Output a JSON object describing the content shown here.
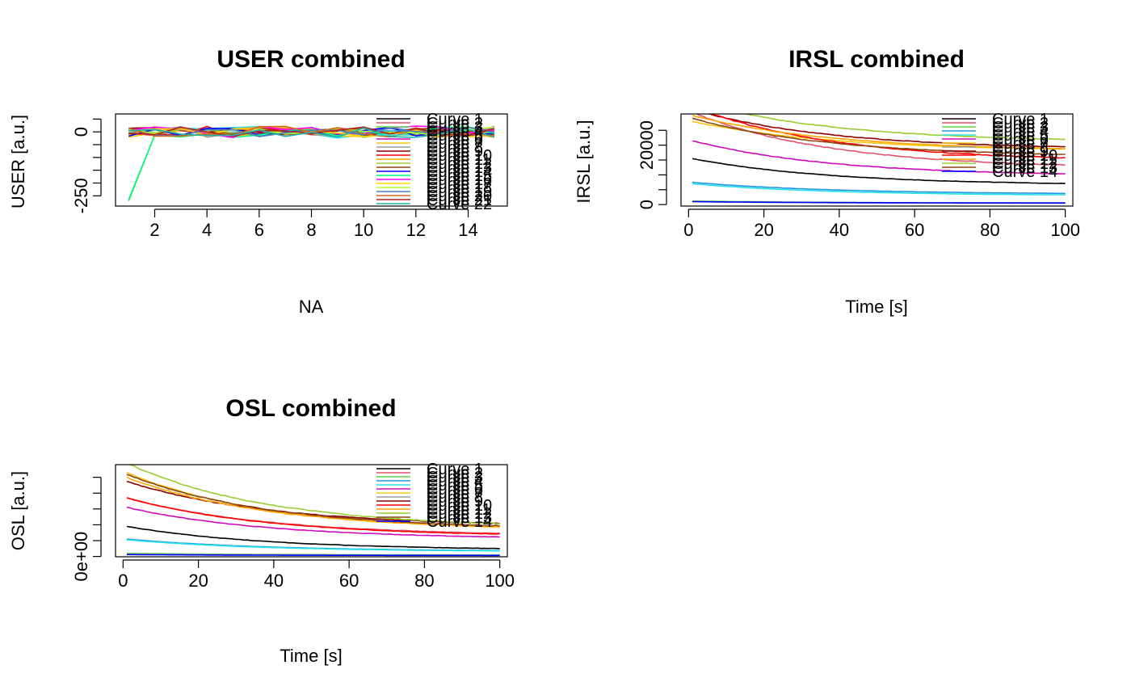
{
  "palette": [
    "#000000",
    "#DF536B",
    "#61D04F",
    "#2297E6",
    "#28E2E5",
    "#CD0BBC",
    "#F5C710",
    "#9E9E9E",
    "#8B0000",
    "#FF0000",
    "#FFA500",
    "#9ACD32",
    "#8B4513",
    "#0000FF",
    "#00FF7F",
    "#FF00FF",
    "#FFD700",
    "#ADFF2F",
    "#4682B4",
    "#D2691E",
    "#B22222",
    "#20B2AA"
  ],
  "chart_data": [
    {
      "type": "line",
      "title": "USER combined",
      "xlabel": "NA",
      "ylabel": "USER [a.u.]",
      "xlim": [
        0.5,
        15.5
      ],
      "ylim": [
        -290,
        70
      ],
      "x_ticks": [
        2,
        4,
        6,
        8,
        10,
        12,
        14
      ],
      "y_ticks": [
        -250,
        0
      ],
      "y_minor_ticks": [
        -250,
        -200,
        -150,
        -100,
        -50,
        0,
        50
      ],
      "legend_position": "top-right",
      "series_count": 22,
      "x": [
        1,
        2,
        3,
        4,
        5,
        6,
        7,
        8,
        9,
        10,
        11,
        12,
        13,
        14,
        15
      ],
      "legend_labels": [
        "Curve 1",
        "Curve 2",
        "Curve 3",
        "Curve 4",
        "Curve 5",
        "Curve 6",
        "Curve 7",
        "Curve 8",
        "Curve 9",
        "Curve 10",
        "Curve 11",
        "Curve 12",
        "Curve 13",
        "Curve 14",
        "Curve 15",
        "Curve 16",
        "Curve 17",
        "Curve 18",
        "Curve 19",
        "Curve 20",
        "Curve 21",
        "Curve 22"
      ],
      "outlier_series": [
        {
          "index": 2,
          "first_value": -270
        },
        {
          "index": 14,
          "first_value": -265
        }
      ]
    },
    {
      "type": "line",
      "title": "IRSL combined",
      "xlabel": "Time [s]",
      "ylabel": "IRSL [a.u.]",
      "xlim": [
        -2,
        102
      ],
      "ylim": [
        -500,
        30500
      ],
      "x_ticks": [
        0,
        20,
        40,
        60,
        80,
        100
      ],
      "y_ticks": [
        0,
        20000
      ],
      "y_minor_ticks": [
        0,
        5000,
        10000,
        15000,
        20000,
        25000
      ],
      "legend_position": "top-right",
      "series_count": 14,
      "legend_labels": [
        "Curve 1",
        "Curve 2",
        "Curve 3",
        "Curve 4",
        "Curve 5",
        "Curve 6",
        "Curve 7",
        "Curve 8",
        "Curve 9",
        "Curve 10",
        "Curve 11",
        "Curve 12",
        "Curve 13",
        "Curve 14"
      ],
      "start_values": [
        15500,
        31000,
        1200,
        7500,
        7000,
        21500,
        28000,
        1000,
        32000,
        33000,
        30000,
        35000,
        29000,
        1000
      ],
      "end_values": [
        6500,
        12000,
        500,
        3500,
        3000,
        9500,
        18000,
        400,
        18500,
        14500,
        18000,
        21000,
        16000,
        500
      ]
    },
    {
      "type": "line",
      "title": "OSL combined",
      "xlabel": "Time [s]",
      "ylabel": "OSL [a.u.]",
      "xlim": [
        -2,
        102
      ],
      "ylim": [
        -200,
        58000
      ],
      "x_ticks": [
        0,
        20,
        40,
        60,
        80,
        100
      ],
      "y_ticks": [
        0
      ],
      "y_tick_labels": [
        "0e+00"
      ],
      "y_minor_ticks": [
        0,
        10000,
        20000,
        30000,
        40000,
        50000
      ],
      "legend_position": "top-right",
      "series_count": 14,
      "legend_labels": [
        "Curve 1",
        "Curve 2",
        "Curve 3",
        "Curve 4",
        "Curve 5",
        "Curve 6",
        "Curve 7",
        "Curve 8",
        "Curve 9",
        "Curve 10",
        "Curve 11",
        "Curve 12",
        "Curve 13",
        "Curve 14"
      ],
      "start_values": [
        19000,
        37000,
        2000,
        11000,
        10500,
        31000,
        53000,
        1500,
        47500,
        37000,
        50000,
        59000,
        52000,
        1200
      ],
      "end_values": [
        4000,
        13000,
        900,
        3200,
        3000,
        11000,
        16000,
        700,
        19000,
        12500,
        16500,
        18000,
        17000,
        600
      ]
    }
  ]
}
